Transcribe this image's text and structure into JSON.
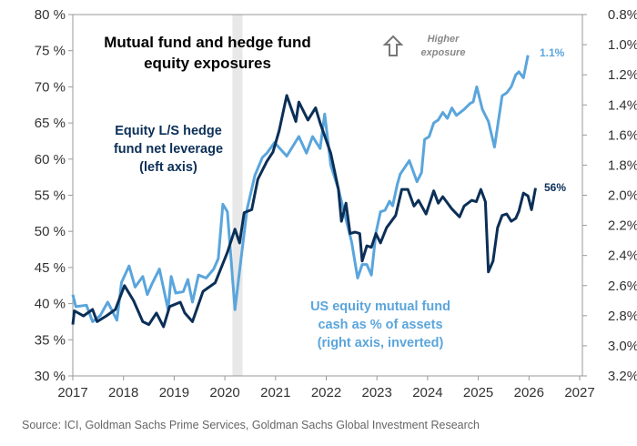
{
  "chart_data": {
    "type": "line",
    "title": [
      "Mutual fund and hedge fund",
      "equity exposures"
    ],
    "higher_note": [
      "Higher",
      "exposure"
    ],
    "source": "Source: ICI, Goldman Sachs Prime Services, Goldman Sachs Global Investment Research",
    "x_ticks": [
      "2017",
      "2018",
      "2019",
      "2020",
      "2021",
      "2022",
      "2023",
      "2024",
      "2025",
      "2026",
      "2027"
    ],
    "xlim": [
      2017,
      2027
    ],
    "left_axis": {
      "ticks": [
        "30 %",
        "35 %",
        "40 %",
        "45 %",
        "50 %",
        "55 %",
        "60 %",
        "65 %",
        "70 %",
        "75 %",
        "80 %"
      ],
      "ylim": [
        30,
        80
      ]
    },
    "right_axis": {
      "ticks": [
        "0.8%",
        "1.0%",
        "1.2%",
        "1.4%",
        "1.6%",
        "1.8%",
        "2.0%",
        "2.2%",
        "2.4%",
        "2.6%",
        "2.8%",
        "3.0%",
        "3.2%"
      ],
      "ylim": [
        0.8,
        3.2
      ],
      "inverted": true
    },
    "shaded_period": [
      2020.15,
      2020.35
    ],
    "colors": {
      "hedge": "#0b2f57",
      "mutual": "#5aa5dc",
      "shade": "#e8e8e8"
    },
    "series": [
      {
        "name": "Equity L/S hedge fund net leverage (left axis)",
        "label_lines": [
          "Equity L/S hedge",
          "fund net leverage",
          "(left axis)"
        ],
        "axis": "left",
        "end_label": "56%",
        "x": [
          2017.0,
          2017.03,
          2017.21,
          2017.39,
          2017.48,
          2017.66,
          2017.84,
          2018.02,
          2018.2,
          2018.38,
          2018.5,
          2018.65,
          2018.79,
          2018.91,
          2019.12,
          2019.21,
          2019.36,
          2019.57,
          2019.81,
          2020.05,
          2020.2,
          2020.29,
          2020.38,
          2020.53,
          2020.65,
          2020.83,
          2020.95,
          2021.07,
          2021.22,
          2021.4,
          2021.46,
          2021.64,
          2021.79,
          2021.88,
          2022.09,
          2022.24,
          2022.3,
          2022.39,
          2022.47,
          2022.57,
          2022.66,
          2022.71,
          2022.8,
          2022.89,
          2022.98,
          2023.07,
          2023.19,
          2023.37,
          2023.49,
          2023.61,
          2023.73,
          2023.82,
          2023.97,
          2024.12,
          2024.21,
          2024.3,
          2024.48,
          2024.63,
          2024.72,
          2024.87,
          2024.96,
          2025.05,
          2025.14,
          2025.2,
          2025.29,
          2025.38,
          2025.47,
          2025.56,
          2025.65,
          2025.74,
          2025.8,
          2025.89,
          2025.98,
          2026.05,
          2026.13
        ],
        "y": [
          37.1,
          39.0,
          38.3,
          39.2,
          37.5,
          38.3,
          39.2,
          42.5,
          40.4,
          37.5,
          37.1,
          38.7,
          36.8,
          39.6,
          40.2,
          38.7,
          37.5,
          41.7,
          42.9,
          47.1,
          50.3,
          48.4,
          52.6,
          53.0,
          57.2,
          59.7,
          61.0,
          63.9,
          68.8,
          65.2,
          67.9,
          65.4,
          67.1,
          65.0,
          60.8,
          55.8,
          51.4,
          53.9,
          49.7,
          49.9,
          49.7,
          45.9,
          48.0,
          47.8,
          49.7,
          48.4,
          50.5,
          52.2,
          55.8,
          55.8,
          53.5,
          54.3,
          52.4,
          55.6,
          53.9,
          54.8,
          53.1,
          52.0,
          53.5,
          54.3,
          54.1,
          55.8,
          54.1,
          44.4,
          45.9,
          50.5,
          52.2,
          52.4,
          51.4,
          51.8,
          52.8,
          55.3,
          54.9,
          53.0,
          56.0
        ]
      },
      {
        "name": "US equity mutual fund cash as % of assets (right axis, inverted)",
        "label_lines": [
          "US equity mutual fund",
          "cash as % of assets",
          "(right axis, inverted)"
        ],
        "axis": "right",
        "end_label": "1.1%",
        "x": [
          2017.0,
          2017.06,
          2017.27,
          2017.39,
          2017.54,
          2017.69,
          2017.87,
          2017.96,
          2018.11,
          2018.23,
          2018.38,
          2018.47,
          2018.56,
          2018.71,
          2018.88,
          2018.94,
          2019.03,
          2019.18,
          2019.27,
          2019.36,
          2019.48,
          2019.63,
          2019.78,
          2019.87,
          2019.96,
          2020.05,
          2020.2,
          2020.32,
          2020.44,
          2020.59,
          2020.74,
          2020.83,
          2020.98,
          2021.22,
          2021.46,
          2021.61,
          2021.73,
          2021.88,
          2021.97,
          2022.09,
          2022.24,
          2022.39,
          2022.5,
          2022.62,
          2022.71,
          2022.8,
          2022.89,
          2022.98,
          2023.07,
          2023.16,
          2023.25,
          2023.31,
          2023.4,
          2023.46,
          2023.64,
          2023.79,
          2023.88,
          2023.94,
          2024.03,
          2024.12,
          2024.21,
          2024.3,
          2024.39,
          2024.48,
          2024.57,
          2024.72,
          2024.84,
          2024.9,
          2024.97,
          2025.08,
          2025.2,
          2025.32,
          2025.47,
          2025.56,
          2025.65,
          2025.74,
          2025.8,
          2025.89,
          2025.98
        ],
        "y": [
          2.66,
          2.74,
          2.73,
          2.84,
          2.8,
          2.71,
          2.83,
          2.58,
          2.47,
          2.61,
          2.54,
          2.66,
          2.59,
          2.49,
          2.76,
          2.54,
          2.65,
          2.64,
          2.56,
          2.71,
          2.53,
          2.55,
          2.49,
          2.42,
          2.06,
          2.11,
          2.76,
          2.42,
          2.09,
          1.87,
          1.75,
          1.72,
          1.65,
          1.74,
          1.61,
          1.72,
          1.61,
          1.69,
          1.46,
          1.8,
          1.96,
          2.16,
          2.31,
          2.55,
          2.46,
          2.46,
          2.53,
          2.25,
          2.11,
          2.1,
          2.04,
          2.07,
          1.93,
          1.86,
          1.77,
          1.91,
          1.85,
          1.63,
          1.61,
          1.52,
          1.5,
          1.45,
          1.49,
          1.42,
          1.47,
          1.43,
          1.39,
          1.38,
          1.28,
          1.43,
          1.51,
          1.68,
          1.34,
          1.32,
          1.28,
          1.2,
          1.18,
          1.22,
          1.07
        ]
      }
    ]
  }
}
